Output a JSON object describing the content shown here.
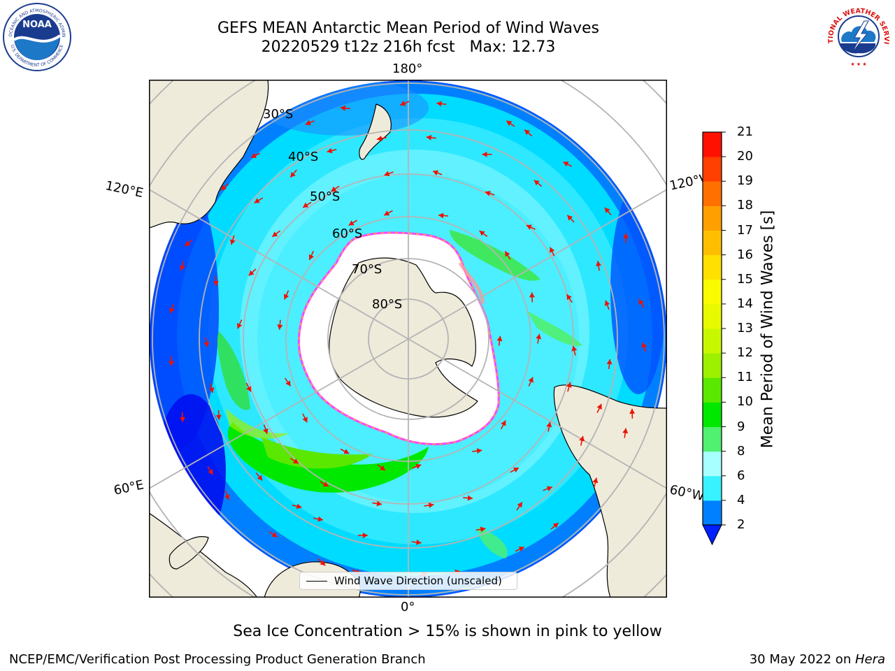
{
  "header": {
    "title_line1": "GEFS MEAN Antarctic Mean Period of Wind Waves",
    "title_line2": "20220529 t12z 216h fcst   Max: 12.73"
  },
  "map": {
    "projection": "south polar stereographic",
    "longitude_labels": {
      "top": "180°",
      "left_upper": "120°E",
      "right_upper": "120°W",
      "left_lower": "60°E",
      "right_lower": "60°W",
      "bottom": "0°"
    },
    "latitude_labels": [
      "30°S",
      "40°S",
      "50°S",
      "60°S",
      "70°S",
      "80°S"
    ],
    "legend_label": "Wind Wave Direction (unscaled)",
    "land_color": "#efebdb",
    "arrow_color": "#ee1100",
    "sea_ice_edge_colors": [
      "#ff44ff",
      "#ffee00"
    ]
  },
  "colorbar": {
    "label": "Mean Period of Wind Waves [s]",
    "ticks": [
      "2",
      "4",
      "6",
      "8",
      "9",
      "10",
      "11",
      "12",
      "13",
      "14",
      "15",
      "16",
      "17",
      "18",
      "19",
      "20",
      "21"
    ],
    "colors": [
      "#0080ff",
      "#00e4ff",
      "#38f2ff",
      "#a8ffff",
      "#50f070",
      "#00e800",
      "#5ae800",
      "#9cf000",
      "#c8f800",
      "#e8fa00",
      "#fafa00",
      "#ffe000",
      "#ffbf00",
      "#ff9f00",
      "#ff7000",
      "#ff4000",
      "#ff1000"
    ],
    "under_color": "#0020ff"
  },
  "caption": "Sea Ice Concentration > 15% is shown in pink to yellow",
  "footer": {
    "left": "NCEP/EMC/Verification Post Processing Product Generation Branch",
    "right_date": "30 May 2022 on ",
    "right_host": "Hera"
  },
  "logos": {
    "noaa_text": "NOAA",
    "noaa_ring_top": "NATIONAL OCEANIC AND ATMOSPHERIC ADMINISTRATION",
    "noaa_ring_bottom": "U.S. DEPARTMENT OF COMMERCE",
    "nws_ring": "NATIONAL WEATHER SERVICE"
  }
}
